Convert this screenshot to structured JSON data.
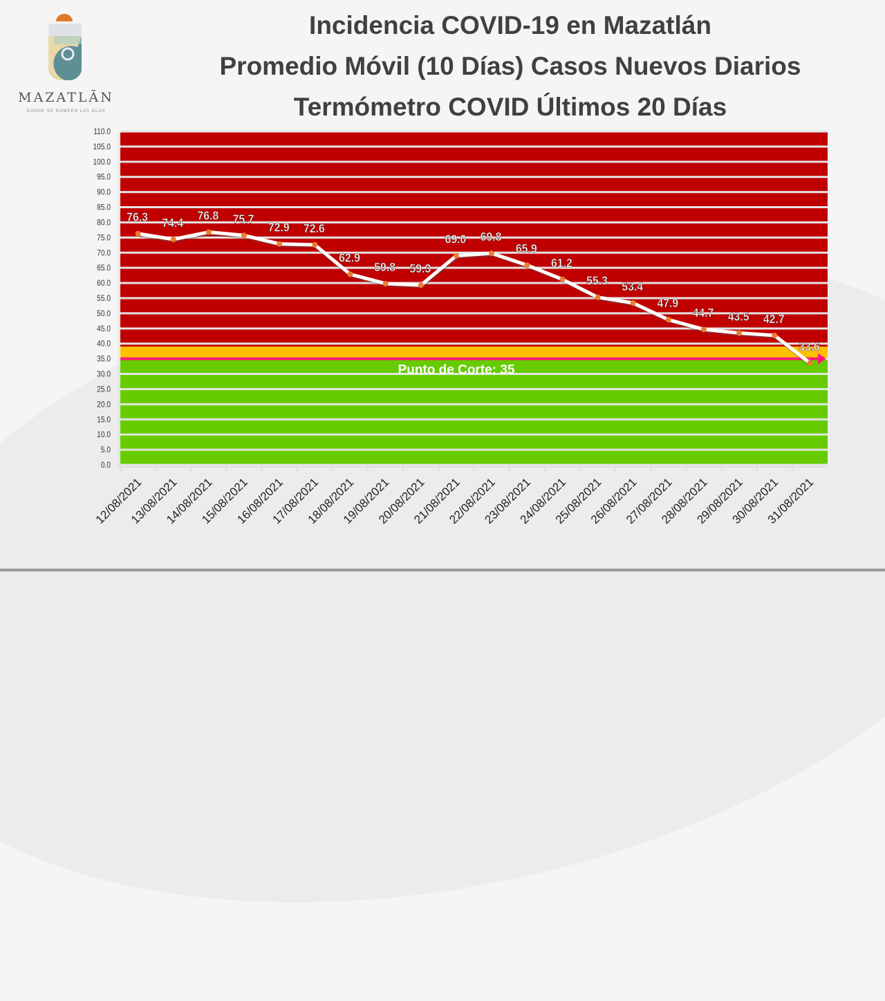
{
  "header": {
    "title_lines": [
      "Incidencia COVID-19 en Mazatlán",
      "Promedio Móvil (10 Días) Casos Nuevos Diarios",
      "Termómetro COVID Últimos 20 Días"
    ]
  },
  "logo": {
    "name": "MAZATLĀN",
    "tagline": "DONDE SE ROMPEN LAS OLAS"
  },
  "chart_data": {
    "type": "line",
    "title": "Termómetro COVID Últimos 20 Días",
    "xlabel": "",
    "ylabel": "",
    "ylim": [
      0,
      110
    ],
    "ytick_step": 5,
    "grid": true,
    "categories": [
      "12/08/2021",
      "13/08/2021",
      "14/08/2021",
      "15/08/2021",
      "16/08/2021",
      "17/08/2021",
      "18/08/2021",
      "19/08/2021",
      "20/08/2021",
      "21/08/2021",
      "22/08/2021",
      "23/08/2021",
      "24/08/2021",
      "25/08/2021",
      "26/08/2021",
      "27/08/2021",
      "28/08/2021",
      "29/08/2021",
      "30/08/2021",
      "31/08/2021"
    ],
    "series": [
      {
        "name": "Promedio Móvil 10 Días",
        "values": [
          76.3,
          74.4,
          76.8,
          75.7,
          72.9,
          72.6,
          62.9,
          59.8,
          59.3,
          69.0,
          69.8,
          65.9,
          61.2,
          55.3,
          53.4,
          47.9,
          44.7,
          43.5,
          42.7,
          33.6
        ]
      }
    ],
    "bands": [
      {
        "name": "red",
        "from": 39,
        "to": 110,
        "color": "#c00000"
      },
      {
        "name": "yellow",
        "from": 35,
        "to": 39,
        "color": "#ffc000"
      },
      {
        "name": "green",
        "from": 0,
        "to": 35,
        "color": "#66cc00"
      }
    ],
    "threshold": {
      "value": 35,
      "label": "Punto de Corte: 35",
      "color": "#ff1a75"
    },
    "line_color": "#ffffff",
    "marker_color": "#ed7d31"
  }
}
